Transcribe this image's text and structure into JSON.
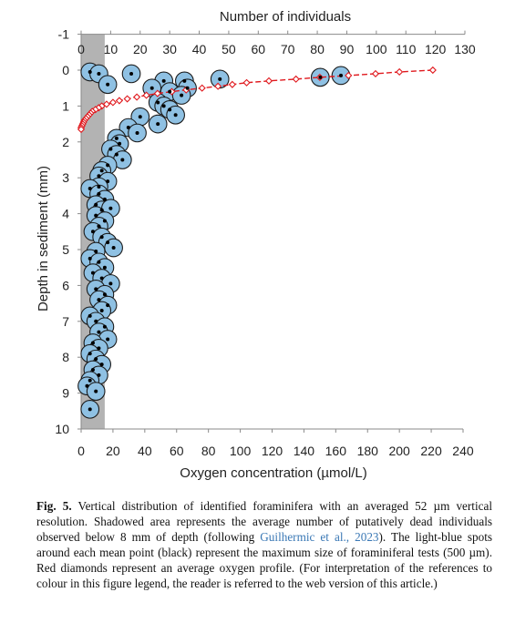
{
  "chart_data": {
    "type": "scatter",
    "title": "",
    "top_axis": {
      "label": "Number of individuals",
      "min": -1,
      "max": 130,
      "ticks": [
        -1,
        0,
        10,
        20,
        30,
        40,
        50,
        60,
        70,
        80,
        90,
        100,
        110,
        120,
        130
      ]
    },
    "x_axis": {
      "label": "Oxygen concentration (µmol/L)",
      "min": -1,
      "max": 240,
      "ticks": [
        0,
        20,
        40,
        60,
        80,
        100,
        120,
        140,
        160,
        180,
        200,
        220,
        240
      ]
    },
    "y_axis": {
      "label": "Depth in sediment (mm)",
      "min": -1,
      "max": 10,
      "reversed": true,
      "ticks": [
        -1,
        0,
        1,
        2,
        3,
        4,
        5,
        6,
        7,
        8,
        9,
        10
      ]
    },
    "shaded_band": {
      "from": 0,
      "to": 8,
      "color": "#b3b3b3"
    },
    "colors": {
      "spot_fill": "#8fc1e3",
      "spot_edge": "#1b1b1b",
      "mean_point": "#000000",
      "oxygen": "#e0191e"
    },
    "series": [
      {
        "kind": "foraminifera",
        "points": [
          [
            3,
            0.05
          ],
          [
            6,
            0.1
          ],
          [
            9,
            0.4
          ],
          [
            17,
            0.1
          ],
          [
            28,
            0.3
          ],
          [
            35,
            0.3
          ],
          [
            36,
            0.5
          ],
          [
            47,
            0.25
          ],
          [
            81,
            0.2
          ],
          [
            88,
            0.15
          ],
          [
            24,
            0.5
          ],
          [
            30,
            0.6
          ],
          [
            34,
            0.7
          ],
          [
            26,
            0.9
          ],
          [
            28,
            1.0
          ],
          [
            30,
            1.1
          ],
          [
            32,
            1.25
          ],
          [
            20,
            1.3
          ],
          [
            26,
            1.5
          ],
          [
            16,
            1.6
          ],
          [
            19,
            1.75
          ],
          [
            12,
            1.9
          ],
          [
            13,
            2.05
          ],
          [
            10,
            2.2
          ],
          [
            12,
            2.35
          ],
          [
            14,
            2.5
          ],
          [
            9,
            2.65
          ],
          [
            7,
            2.8
          ],
          [
            6,
            2.95
          ],
          [
            9,
            3.1
          ],
          [
            6,
            3.25
          ],
          [
            3,
            3.3
          ],
          [
            6,
            3.45
          ],
          [
            8,
            3.6
          ],
          [
            5,
            3.75
          ],
          [
            7,
            3.9
          ],
          [
            10,
            3.85
          ],
          [
            5,
            4.05
          ],
          [
            8,
            4.2
          ],
          [
            6,
            4.35
          ],
          [
            4,
            4.5
          ],
          [
            7,
            4.65
          ],
          [
            9,
            4.8
          ],
          [
            11,
            4.95
          ],
          [
            5,
            5.05
          ],
          [
            3,
            5.25
          ],
          [
            6,
            5.35
          ],
          [
            8,
            5.5
          ],
          [
            4,
            5.65
          ],
          [
            7,
            5.8
          ],
          [
            10,
            5.95
          ],
          [
            5,
            6.1
          ],
          [
            8,
            6.25
          ],
          [
            6,
            6.4
          ],
          [
            9,
            6.55
          ],
          [
            7,
            6.7
          ],
          [
            3,
            6.85
          ],
          [
            5,
            7.0
          ],
          [
            8,
            7.15
          ],
          [
            6,
            7.3
          ],
          [
            9,
            7.5
          ],
          [
            4,
            7.6
          ],
          [
            6,
            7.75
          ],
          [
            3,
            7.9
          ],
          [
            5,
            8.05
          ],
          [
            7,
            8.2
          ],
          [
            4,
            8.35
          ],
          [
            6,
            8.5
          ],
          [
            3,
            8.65
          ],
          [
            2,
            8.8
          ],
          [
            5,
            8.95
          ],
          [
            3,
            9.45
          ]
        ]
      },
      {
        "kind": "oxygen",
        "points": [
          [
            221,
            0.0
          ],
          [
            200,
            0.05
          ],
          [
            185,
            0.1
          ],
          [
            168,
            0.15
          ],
          [
            150,
            0.2
          ],
          [
            135,
            0.25
          ],
          [
            118,
            0.3
          ],
          [
            104,
            0.35
          ],
          [
            95,
            0.4
          ],
          [
            86,
            0.45
          ],
          [
            76,
            0.5
          ],
          [
            66,
            0.55
          ],
          [
            57,
            0.6
          ],
          [
            48,
            0.65
          ],
          [
            41,
            0.7
          ],
          [
            35,
            0.75
          ],
          [
            29,
            0.8
          ],
          [
            24,
            0.85
          ],
          [
            20,
            0.9
          ],
          [
            16,
            0.95
          ],
          [
            13,
            1.0
          ],
          [
            11,
            1.05
          ],
          [
            9,
            1.1
          ],
          [
            7,
            1.15
          ],
          [
            6,
            1.2
          ],
          [
            5,
            1.25
          ],
          [
            4,
            1.3
          ],
          [
            3,
            1.35
          ],
          [
            2,
            1.4
          ],
          [
            1.5,
            1.45
          ],
          [
            1,
            1.5
          ],
          [
            0.5,
            1.55
          ],
          [
            0,
            1.6
          ],
          [
            0,
            1.65
          ]
        ]
      }
    ]
  },
  "caption": {
    "label": "Fig. 5.",
    "text1": " Vertical distribution of identified foraminifera with an averaged 52 µm vertical resolution. Shadowed area represents the average number of putatively dead individuals observed below 8 mm of depth (following ",
    "ref": "Guilhermic et al., 2023",
    "text2": "). The light-blue spots around each mean point (black) represent the maximum size of foraminiferal tests (500 µm). Red diamonds represent an average oxygen profile. (For interpretation of the references to colour in this figure legend, the reader is referred to the web version of this article.)"
  }
}
